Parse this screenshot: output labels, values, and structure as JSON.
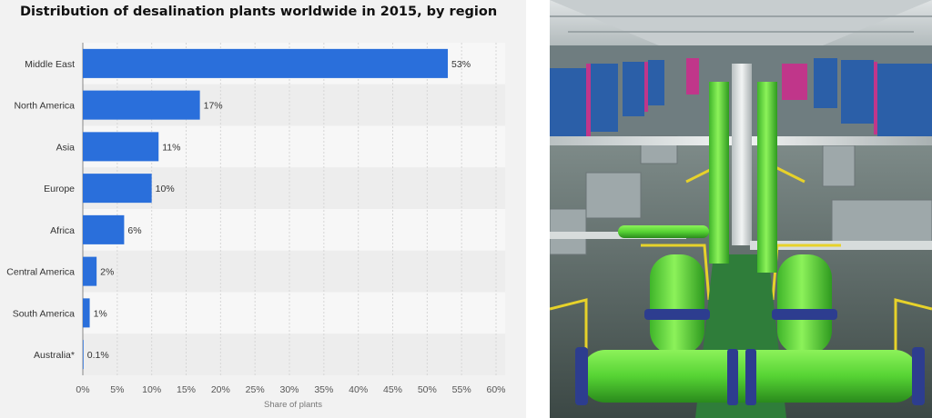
{
  "chart_data": {
    "type": "bar",
    "orientation": "horizontal",
    "title": "Distribution of desalination plants worldwide in 2015, by region",
    "xlabel": "Share of plants",
    "ylabel": "",
    "categories": [
      "Middle East",
      "North America",
      "Asia",
      "Europe",
      "Africa",
      "Central America",
      "South America",
      "Australia*"
    ],
    "values": [
      53,
      17,
      11,
      10,
      6,
      2,
      1,
      0.1
    ],
    "value_labels": [
      "53%",
      "17%",
      "11%",
      "10%",
      "6%",
      "2%",
      "1%",
      "0.1%"
    ],
    "xlim": [
      0,
      60
    ],
    "xticks": [
      0,
      5,
      10,
      15,
      20,
      25,
      30,
      35,
      40,
      45,
      50,
      55,
      60
    ],
    "xtick_labels": [
      "0%",
      "5%",
      "10%",
      "15%",
      "20%",
      "25%",
      "30%",
      "35%",
      "40%",
      "45%",
      "50%",
      "55%",
      "60%"
    ],
    "grid": true,
    "bar_color": "#2a6fdb"
  },
  "photo": {
    "subject": "desalination plant interior with green pipes"
  }
}
